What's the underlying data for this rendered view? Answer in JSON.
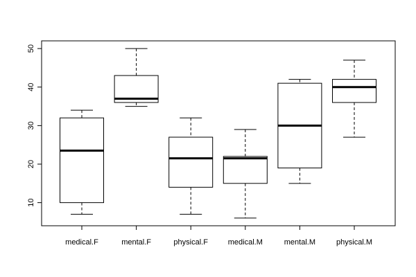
{
  "chart_data": {
    "type": "boxplot",
    "title": "",
    "xlabel": "",
    "ylabel": "",
    "ylim": [
      4,
      52
    ],
    "y_ticks": [
      10,
      20,
      30,
      40,
      50
    ],
    "y_tick_labels": [
      "10",
      "20",
      "30",
      "40",
      "50"
    ],
    "grid": false,
    "legend": false,
    "categories": [
      "medical.F",
      "mental.F",
      "physical.F",
      "medical.M",
      "mental.M",
      "physical.M"
    ],
    "boxes": [
      {
        "label": "medical.F",
        "min": 7,
        "q1": 10,
        "median": 23.5,
        "q3": 32,
        "max": 34
      },
      {
        "label": "mental.F",
        "min": 35,
        "q1": 36,
        "median": 37,
        "q3": 43,
        "max": 50
      },
      {
        "label": "physical.F",
        "min": 7,
        "q1": 14,
        "median": 21.5,
        "q3": 27,
        "max": 32
      },
      {
        "label": "medical.M",
        "min": 6,
        "q1": 15,
        "median": 21.5,
        "q3": 22,
        "max": 29
      },
      {
        "label": "mental.M",
        "min": 15,
        "q1": 19,
        "median": 30,
        "q3": 41,
        "max": 42
      },
      {
        "label": "physical.M",
        "min": 27,
        "q1": 36,
        "median": 40,
        "q3": 42,
        "max": 47
      }
    ]
  }
}
